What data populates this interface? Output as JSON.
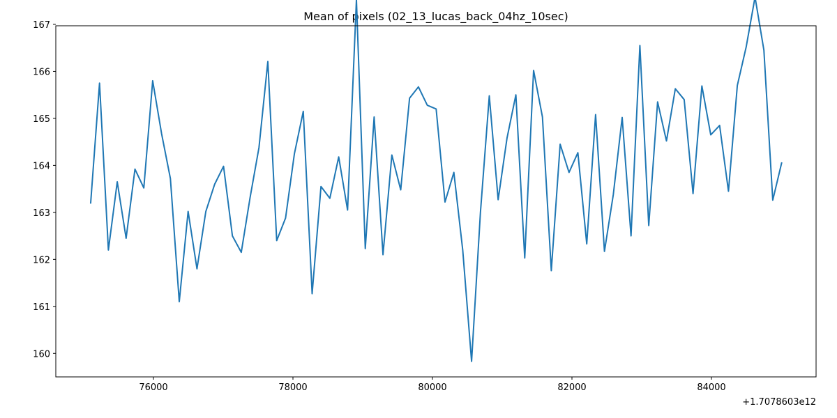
{
  "chart_data": {
    "type": "line",
    "title": "Mean of pixels (02_13_lucas_back_04hz_10sec)",
    "xlabel": "",
    "ylabel": "",
    "x_offset_label": "+1.7078603e12",
    "xlim": [
      74600,
      85500
    ],
    "ylim": [
      159.5,
      166.97
    ],
    "x_ticks": [
      76000,
      78000,
      80000,
      82000,
      84000
    ],
    "x_tick_labels": [
      "76000",
      "78000",
      "80000",
      "82000",
      "84000"
    ],
    "y_ticks": [
      160,
      161,
      162,
      163,
      164,
      165,
      166,
      167
    ],
    "y_tick_labels": [
      "160",
      "161",
      "162",
      "163",
      "164",
      "165",
      "166",
      "167"
    ],
    "grid": false,
    "line_color": "#1f77b4",
    "series": [
      {
        "x": [
          75100,
          75227,
          75354,
          75481,
          75608,
          75735,
          75862,
          75989,
          76116,
          76243,
          76370,
          76497,
          76624,
          76751,
          76878,
          77005,
          77132,
          77259,
          77386,
          77513,
          77640,
          77767,
          77894,
          78021,
          78148,
          78275,
          78402,
          78529,
          78656,
          78783,
          78910,
          79037,
          79164,
          79291,
          79418,
          79545,
          79672,
          79799,
          79926,
          80053,
          80180,
          80307,
          80434,
          80561,
          80688,
          80815,
          80942,
          81069,
          81196,
          81323,
          81450,
          81577,
          81704,
          81831,
          81958,
          82085,
          82212,
          82339,
          82466,
          82593,
          82720,
          82847,
          82974,
          83101,
          83228,
          83355,
          83482,
          83609,
          83736,
          83863,
          83990,
          84117,
          84244,
          84371,
          84498,
          84625,
          84752,
          84879,
          85006
        ],
        "y": [
          163.2,
          165.75,
          162.2,
          163.65,
          162.45,
          163.92,
          163.52,
          165.8,
          164.68,
          163.72,
          161.1,
          163.02,
          161.8,
          163.02,
          163.6,
          163.98,
          162.5,
          162.15,
          163.32,
          164.38,
          166.21,
          162.4,
          162.88,
          164.25,
          165.15,
          161.27,
          163.55,
          163.3,
          164.18,
          163.05,
          167.52,
          162.23,
          165.03,
          162.1,
          164.22,
          163.48,
          165.43,
          165.67,
          165.28,
          165.2,
          163.22,
          163.85,
          162.2,
          159.83,
          163.0,
          165.48,
          163.27,
          164.58,
          165.5,
          162.03,
          166.02,
          165.03,
          161.76,
          164.45,
          163.85,
          164.27,
          162.33,
          165.08,
          162.17,
          163.38,
          165.02,
          162.5,
          166.55,
          162.72,
          165.35,
          164.52,
          165.63,
          165.4,
          163.4,
          165.69,
          164.65,
          164.85,
          163.45,
          165.7,
          166.52,
          167.58,
          166.45,
          163.26,
          164.05
        ]
      }
    ]
  }
}
